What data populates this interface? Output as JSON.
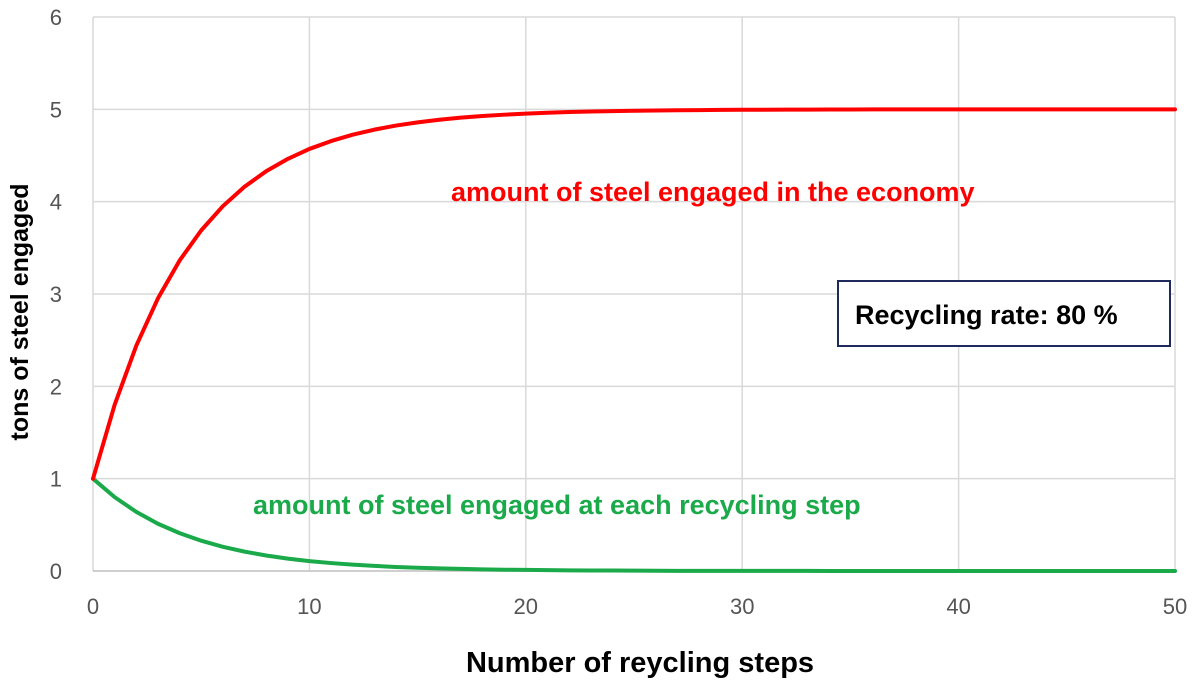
{
  "chart_data": {
    "type": "line",
    "xlabel": "Number of reycling steps",
    "ylabel": "tons of steel engaged",
    "xlim": [
      0,
      50
    ],
    "ylim": [
      0,
      6
    ],
    "x_ticks": [
      0,
      10,
      20,
      30,
      40,
      50
    ],
    "y_ticks": [
      0,
      1,
      2,
      3,
      4,
      5,
      6
    ],
    "grid": true,
    "recycling_rate": 0.8,
    "x": [
      0,
      1,
      2,
      3,
      4,
      5,
      6,
      7,
      8,
      9,
      10,
      11,
      12,
      13,
      14,
      15,
      16,
      17,
      18,
      19,
      20,
      21,
      22,
      23,
      24,
      25,
      26,
      27,
      28,
      29,
      30,
      31,
      32,
      33,
      34,
      35,
      36,
      37,
      38,
      39,
      40,
      41,
      42,
      43,
      44,
      45,
      46,
      47,
      48,
      49,
      50
    ],
    "series": [
      {
        "name": "amount of steel engaged in the economy",
        "color": "#ff0000",
        "values": [
          1.0,
          1.8,
          2.44,
          2.952,
          3.362,
          3.689,
          3.951,
          4.161,
          4.329,
          4.463,
          4.571,
          4.656,
          4.725,
          4.78,
          4.824,
          4.859,
          4.887,
          4.91,
          4.928,
          4.942,
          4.954,
          4.963,
          4.971,
          4.976,
          4.981,
          4.985,
          4.988,
          4.99,
          4.992,
          4.994,
          4.995,
          4.996,
          4.997,
          4.997,
          4.998,
          4.998,
          4.999,
          4.999,
          4.999,
          4.999,
          4.999,
          5.0,
          5.0,
          5.0,
          5.0,
          5.0,
          5.0,
          5.0,
          5.0,
          5.0,
          5.0
        ]
      },
      {
        "name": "amount of steel engaged at each recycling step",
        "color": "#1aaa4a",
        "values": [
          1.0,
          0.8,
          0.64,
          0.512,
          0.41,
          0.328,
          0.262,
          0.21,
          0.168,
          0.134,
          0.107,
          0.086,
          0.069,
          0.055,
          0.044,
          0.035,
          0.028,
          0.023,
          0.018,
          0.014,
          0.012,
          0.009,
          0.007,
          0.006,
          0.005,
          0.004,
          0.003,
          0.002,
          0.002,
          0.002,
          0.001,
          0.001,
          0.001,
          0.001,
          0.0,
          0.0,
          0.0,
          0.0,
          0.0,
          0.0,
          0.0,
          0.0,
          0.0,
          0.0,
          0.0,
          0.0,
          0.0,
          0.0,
          0.0,
          0.0,
          0.0
        ]
      }
    ],
    "annotations": {
      "red_label": "amount of steel engaged in the economy",
      "green_label": "amount of steel engaged at each recycling step",
      "box_label": "Recycling rate: 80 %"
    }
  },
  "colors": {
    "grid": "#d9d9d9",
    "box_border": "#1f2a5c"
  }
}
